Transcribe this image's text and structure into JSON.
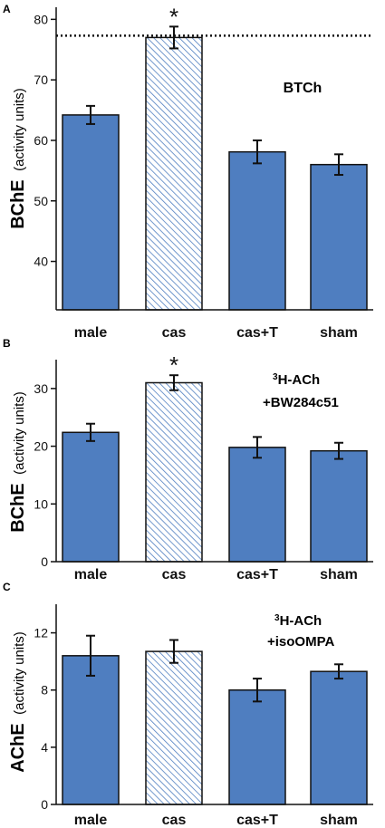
{
  "chart_data": [
    {
      "panel": "A",
      "type": "bar",
      "categories": [
        "male",
        "cas",
        "cas+T",
        "sham"
      ],
      "values": [
        64.2,
        77.0,
        58.1,
        56.0
      ],
      "errors": [
        1.5,
        1.8,
        1.9,
        1.7
      ],
      "significance": [
        "",
        "*",
        "",
        ""
      ],
      "reference_line": 77.3,
      "annotation": "BTCh",
      "ylabel_main": "BChE",
      "ylabel_units": "(activity units)",
      "ylim": [
        32,
        82
      ],
      "yticks": [
        40,
        50,
        60,
        70,
        80
      ],
      "grid": false
    },
    {
      "panel": "B",
      "type": "bar",
      "categories": [
        "male",
        "cas",
        "cas+T",
        "sham"
      ],
      "values": [
        22.4,
        31.0,
        19.8,
        19.2
      ],
      "errors": [
        1.5,
        1.3,
        1.8,
        1.4
      ],
      "significance": [
        "",
        "*",
        "",
        ""
      ],
      "annotation_sup": "3",
      "annotation_line1": "H-ACh",
      "annotation_line2": "+BW284c51",
      "ylabel_main": "BChE",
      "ylabel_units": "(activity units)",
      "ylim": [
        0,
        35
      ],
      "yticks": [
        0,
        10,
        20,
        30
      ],
      "grid": false
    },
    {
      "panel": "C",
      "type": "bar",
      "categories": [
        "male",
        "cas",
        "cas+T",
        "sham"
      ],
      "values": [
        10.4,
        10.7,
        8.0,
        9.3
      ],
      "errors": [
        1.4,
        0.8,
        0.8,
        0.5
      ],
      "significance": [
        "",
        "",
        "",
        ""
      ],
      "annotation_sup": "3",
      "annotation_line1": "H-ACh",
      "annotation_line2": "+isoOMPA",
      "ylabel_main": "AChE",
      "ylabel_units": "(activity units)",
      "ylim": [
        0,
        14
      ],
      "yticks": [
        0,
        4,
        8,
        12
      ],
      "grid": false
    }
  ],
  "colors": {
    "bar_fill": "#4f7ec0",
    "bar_stroke": "#111111",
    "hatch_bg": "#ffffff",
    "hatch_line": "#4f7ec0",
    "axis": "#111111",
    "text": "#111111"
  }
}
